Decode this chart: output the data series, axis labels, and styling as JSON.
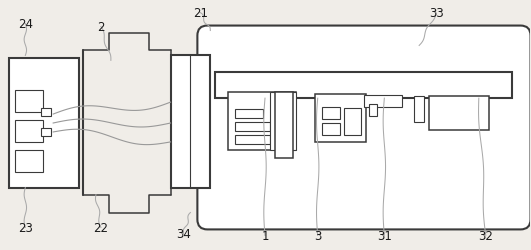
{
  "bg_color": "#f0ede8",
  "line_color": "#3a3a3a",
  "label_color": "#1a1a1a",
  "wire_color": "#999999",
  "fig_width": 5.31,
  "fig_height": 2.51,
  "dpi": 100
}
